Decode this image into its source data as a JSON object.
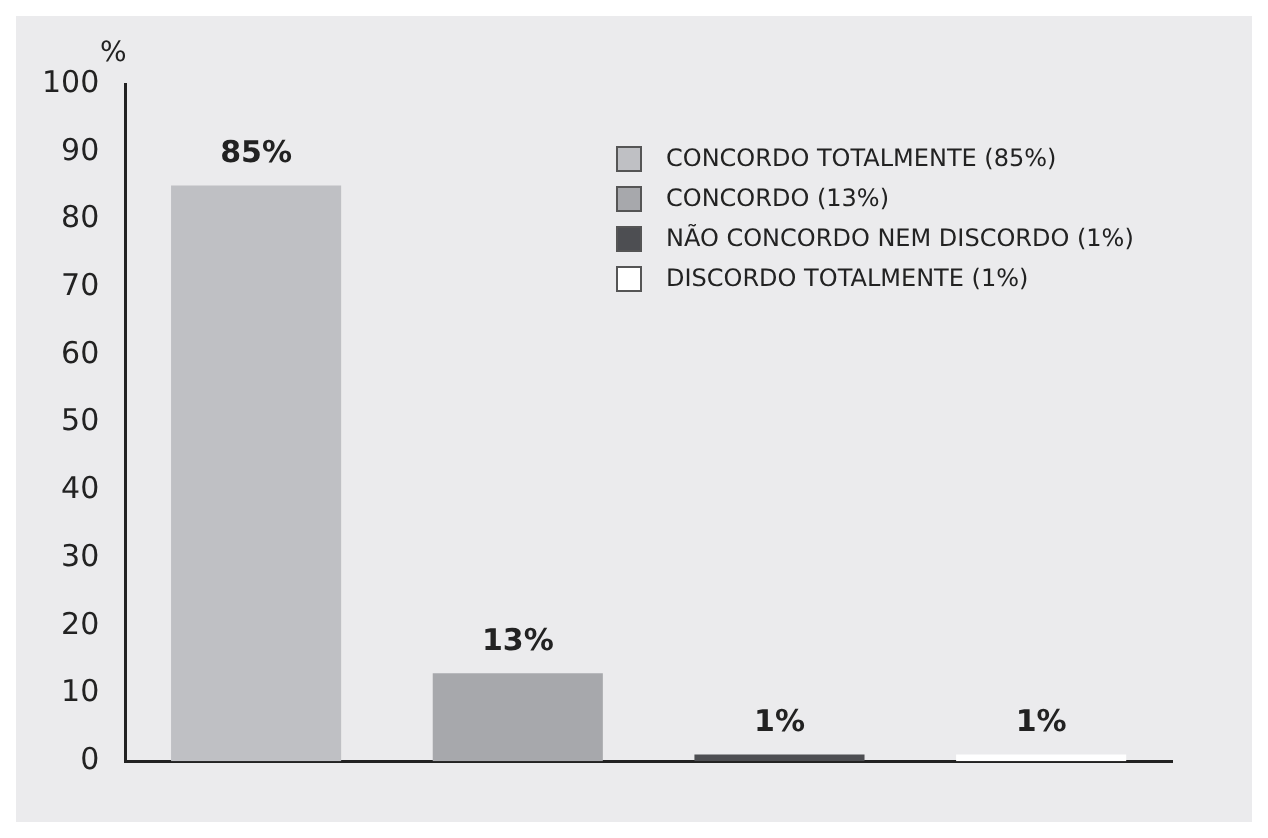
{
  "chart_data": {
    "type": "bar",
    "ylabel": "%",
    "categories": [
      null,
      null,
      null,
      null
    ],
    "series": [
      {
        "name": "CONCORDO TOTALMENTE (85%)",
        "color": "#bfc0c4",
        "values": [
          85,
          null,
          null,
          null
        ],
        "value_labels": [
          "85%",
          null,
          null,
          null
        ]
      },
      {
        "name": "CONCORDO (13%)",
        "color": "#a7a8ac",
        "values": [
          null,
          13,
          null,
          null
        ],
        "value_labels": [
          null,
          "13%",
          null,
          null
        ]
      },
      {
        "name": "NÃO CONCORDO NEM DISCORDO (1%)",
        "color": "#4d4e52",
        "values": [
          null,
          null,
          1,
          null
        ],
        "value_labels": [
          null,
          null,
          "1%",
          null
        ]
      },
      {
        "name": "DISCORDO TOTALMENTE (1%)",
        "color": "#ffffff",
        "values": [
          null,
          null,
          null,
          1
        ],
        "value_labels": [
          null,
          null,
          null,
          "1%"
        ]
      }
    ],
    "ylim": [
      0,
      100
    ],
    "yticks": [
      0,
      10,
      20,
      30,
      40,
      50,
      60,
      70,
      80,
      90,
      100
    ],
    "grid": false,
    "legend": "top right"
  }
}
